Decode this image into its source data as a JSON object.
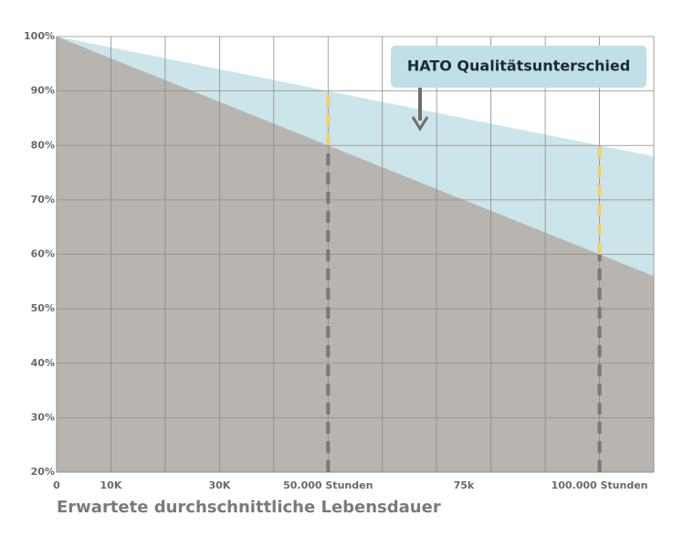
{
  "chart_data": {
    "type": "area",
    "xlabel": "Erwartete durchschnittliche Lebensdauer",
    "annotation": "HATO Qualitätsunterschied",
    "x": [
      0,
      50000,
      100000,
      110000
    ],
    "series": [
      {
        "color": "#cce5ea",
        "values": [
          100,
          90,
          80,
          78
        ]
      },
      {
        "color": "#b8b5b1",
        "values": [
          100,
          80,
          60,
          56
        ]
      }
    ],
    "xlim": [
      0,
      110000
    ],
    "xticks": [
      0,
      {
        "value": 10000,
        "label": "10K"
      },
      {
        "value": 30000,
        "label": "30K"
      },
      {
        "value": 50000,
        "label": "50.000 Stunden"
      },
      {
        "value": 75000,
        "label": "75k"
      },
      {
        "value": 100000,
        "label": "100.000 Stunden"
      }
    ],
    "xgrid": [
      10000,
      20000,
      30000,
      40000,
      50000,
      60000,
      70000,
      80000,
      90000,
      100000,
      110000
    ],
    "ylim": [
      20,
      100
    ],
    "yticks": [
      {
        "value": 100,
        "label": "100%"
      },
      {
        "value": 90,
        "label": "90%"
      },
      {
        "value": 80,
        "label": "80%"
      },
      {
        "value": 70,
        "label": "70%"
      },
      {
        "value": 60,
        "label": "60%"
      },
      {
        "value": 50,
        "label": "50%"
      },
      {
        "value": 40,
        "label": "40%"
      },
      {
        "value": 30,
        "label": "30%"
      },
      {
        "value": 20,
        "label": "20%"
      }
    ],
    "grid": true,
    "marker_color": "#f5cf6a",
    "drop_color": "#7a7874"
  }
}
